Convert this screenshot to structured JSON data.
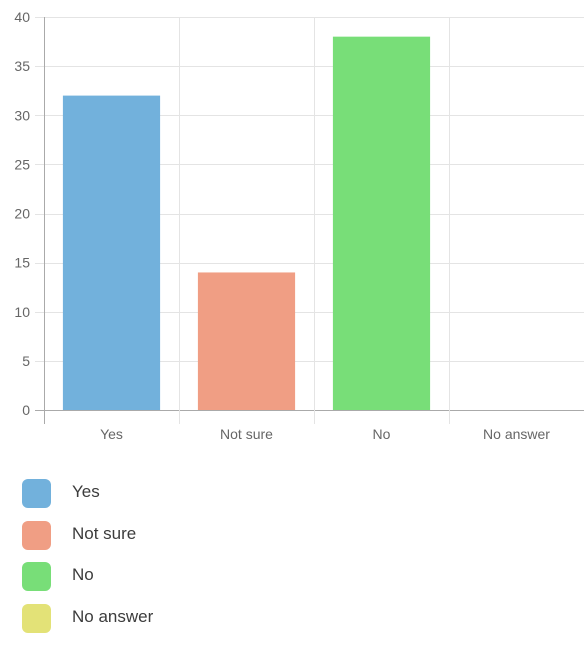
{
  "chart_data": {
    "type": "bar",
    "title": "",
    "xlabel": "",
    "ylabel": "",
    "categories": [
      "Yes",
      "Not sure",
      "No",
      "No answer"
    ],
    "values": [
      32,
      14,
      38,
      0
    ],
    "colors": [
      "#72b1dc",
      "#f09e84",
      "#78de78",
      "#e3e277"
    ],
    "ylim": [
      0,
      40
    ],
    "yticks": [
      "0",
      "5",
      "10",
      "15",
      "20",
      "25",
      "30",
      "35",
      "40"
    ],
    "grid": true,
    "legend_position": "bottom"
  },
  "legend": {
    "items": [
      {
        "label": "Yes",
        "color": "#72b1dc"
      },
      {
        "label": "Not sure",
        "color": "#f09e84"
      },
      {
        "label": "No",
        "color": "#78de78"
      },
      {
        "label": "No answer",
        "color": "#e3e277"
      }
    ]
  }
}
